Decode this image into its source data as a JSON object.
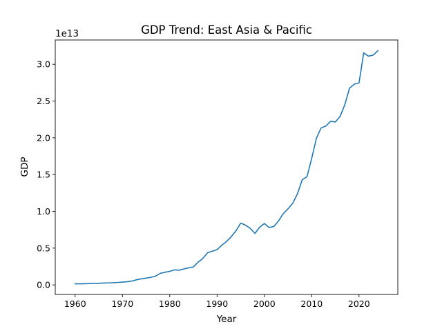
{
  "chart_data": {
    "type": "line",
    "title": "GDP Trend: East Asia & Pacific",
    "xlabel": "Year",
    "ylabel": "GDP",
    "offset_label": "1e13",
    "xlim": [
      1955.8,
      2028.2
    ],
    "ylim": [
      -0.13,
      3.33
    ],
    "x_ticks": [
      1960,
      1970,
      1980,
      1990,
      2000,
      2010,
      2020
    ],
    "y_ticks": [
      0.0,
      0.5,
      1.0,
      1.5,
      2.0,
      2.5,
      3.0
    ],
    "y_tick_labels": [
      "0.0",
      "0.5",
      "1.0",
      "1.5",
      "2.0",
      "2.5",
      "3.0"
    ],
    "grid": false,
    "line_color": "#1f77b4",
    "series": [
      {
        "x": [
          1960,
          1961,
          1962,
          1963,
          1964,
          1965,
          1966,
          1967,
          1968,
          1969,
          1970,
          1971,
          1972,
          1973,
          1974,
          1975,
          1976,
          1977,
          1978,
          1979,
          1980,
          1981,
          1982,
          1983,
          1984,
          1985,
          1986,
          1987,
          1988,
          1989,
          1990,
          1991,
          1992,
          1993,
          1994,
          1995,
          1996,
          1997,
          1998,
          1999,
          2000,
          2001,
          2002,
          2003,
          2004,
          2005,
          2006,
          2007,
          2008,
          2009,
          2010,
          2011,
          2012,
          2013,
          2014,
          2015,
          2016,
          2017,
          2018,
          2019,
          2020,
          2021,
          2022,
          2023,
          2024
        ],
        "y": [
          0.015,
          0.015,
          0.016,
          0.018,
          0.02,
          0.022,
          0.025,
          0.027,
          0.029,
          0.033,
          0.038,
          0.043,
          0.052,
          0.07,
          0.083,
          0.092,
          0.102,
          0.12,
          0.157,
          0.172,
          0.184,
          0.204,
          0.2,
          0.217,
          0.233,
          0.244,
          0.31,
          0.36,
          0.437,
          0.458,
          0.478,
          0.54,
          0.59,
          0.656,
          0.735,
          0.84,
          0.812,
          0.77,
          0.7,
          0.785,
          0.835,
          0.78,
          0.795,
          0.87,
          0.97,
          1.035,
          1.11,
          1.24,
          1.43,
          1.47,
          1.72,
          1.995,
          2.135,
          2.16,
          2.225,
          2.215,
          2.29,
          2.45,
          2.675,
          2.73,
          2.745,
          3.155,
          3.11,
          3.125,
          3.185
        ]
      }
    ]
  }
}
